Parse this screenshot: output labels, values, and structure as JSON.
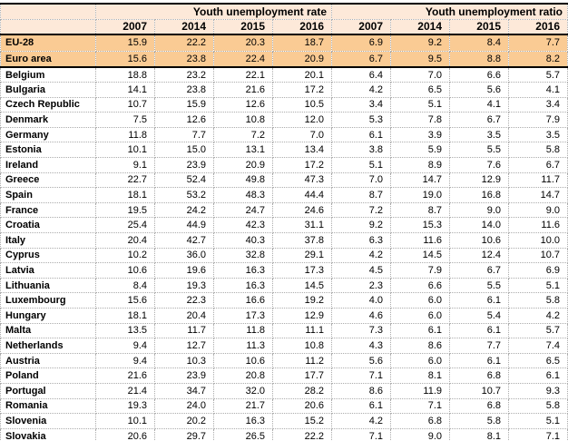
{
  "colors": {
    "header_fill": "#FDE9D9",
    "highlight_fill": "#FACB94",
    "grid_dotted": "#ACACAC",
    "rule_black": "#000000"
  },
  "chart_data": {
    "type": "table",
    "group_headers": [
      "Youth unemployment rate",
      "Youth unemployment ratio"
    ],
    "year_columns": [
      "2007",
      "2014",
      "2015",
      "2016",
      "2007",
      "2014",
      "2015",
      "2016"
    ],
    "legend_note": "rows EU-28 and Euro area are highlighted; bottom row Slovakia is cut off by the viewport",
    "rows": [
      {
        "name": "EU-28",
        "highlight": true,
        "thick_bottom": false,
        "rate": [
          "15.9",
          "22.2",
          "20.3",
          "18.7"
        ],
        "ratio": [
          "6.9",
          "9.2",
          "8.4",
          "7.7"
        ]
      },
      {
        "name": "Euro area",
        "highlight": true,
        "thick_bottom": true,
        "rate": [
          "15.6",
          "23.8",
          "22.4",
          "20.9"
        ],
        "ratio": [
          "6.7",
          "9.5",
          "8.8",
          "8.2"
        ]
      },
      {
        "name": "Belgium",
        "highlight": false,
        "thick_bottom": false,
        "rate": [
          "18.8",
          "23.2",
          "22.1",
          "20.1"
        ],
        "ratio": [
          "6.4",
          "7.0",
          "6.6",
          "5.7"
        ]
      },
      {
        "name": "Bulgaria",
        "highlight": false,
        "thick_bottom": false,
        "rate": [
          "14.1",
          "23.8",
          "21.6",
          "17.2"
        ],
        "ratio": [
          "4.2",
          "6.5",
          "5.6",
          "4.1"
        ]
      },
      {
        "name": "Czech Republic",
        "highlight": false,
        "thick_bottom": false,
        "rate": [
          "10.7",
          "15.9",
          "12.6",
          "10.5"
        ],
        "ratio": [
          "3.4",
          "5.1",
          "4.1",
          "3.4"
        ]
      },
      {
        "name": "Denmark",
        "highlight": false,
        "thick_bottom": false,
        "rate": [
          "7.5",
          "12.6",
          "10.8",
          "12.0"
        ],
        "ratio": [
          "5.3",
          "7.8",
          "6.7",
          "7.9"
        ]
      },
      {
        "name": "Germany",
        "highlight": false,
        "thick_bottom": false,
        "rate": [
          "11.8",
          "7.7",
          "7.2",
          "7.0"
        ],
        "ratio": [
          "6.1",
          "3.9",
          "3.5",
          "3.5"
        ]
      },
      {
        "name": "Estonia",
        "highlight": false,
        "thick_bottom": false,
        "rate": [
          "10.1",
          "15.0",
          "13.1",
          "13.4"
        ],
        "ratio": [
          "3.8",
          "5.9",
          "5.5",
          "5.8"
        ]
      },
      {
        "name": "Ireland",
        "highlight": false,
        "thick_bottom": false,
        "rate": [
          "9.1",
          "23.9",
          "20.9",
          "17.2"
        ],
        "ratio": [
          "5.1",
          "8.9",
          "7.6",
          "6.7"
        ]
      },
      {
        "name": "Greece",
        "highlight": false,
        "thick_bottom": false,
        "rate": [
          "22.7",
          "52.4",
          "49.8",
          "47.3"
        ],
        "ratio": [
          "7.0",
          "14.7",
          "12.9",
          "11.7"
        ]
      },
      {
        "name": "Spain",
        "highlight": false,
        "thick_bottom": false,
        "rate": [
          "18.1",
          "53.2",
          "48.3",
          "44.4"
        ],
        "ratio": [
          "8.7",
          "19.0",
          "16.8",
          "14.7"
        ]
      },
      {
        "name": "France",
        "highlight": false,
        "thick_bottom": false,
        "rate": [
          "19.5",
          "24.2",
          "24.7",
          "24.6"
        ],
        "ratio": [
          "7.2",
          "8.7",
          "9.0",
          "9.0"
        ]
      },
      {
        "name": "Croatia",
        "highlight": false,
        "thick_bottom": false,
        "rate": [
          "25.4",
          "44.9",
          "42.3",
          "31.1"
        ],
        "ratio": [
          "9.2",
          "15.3",
          "14.0",
          "11.6"
        ]
      },
      {
        "name": "Italy",
        "highlight": false,
        "thick_bottom": false,
        "rate": [
          "20.4",
          "42.7",
          "40.3",
          "37.8"
        ],
        "ratio": [
          "6.3",
          "11.6",
          "10.6",
          "10.0"
        ]
      },
      {
        "name": "Cyprus",
        "highlight": false,
        "thick_bottom": false,
        "rate": [
          "10.2",
          "36.0",
          "32.8",
          "29.1"
        ],
        "ratio": [
          "4.2",
          "14.5",
          "12.4",
          "10.7"
        ]
      },
      {
        "name": "Latvia",
        "highlight": false,
        "thick_bottom": false,
        "rate": [
          "10.6",
          "19.6",
          "16.3",
          "17.3"
        ],
        "ratio": [
          "4.5",
          "7.9",
          "6.7",
          "6.9"
        ]
      },
      {
        "name": "Lithuania",
        "highlight": false,
        "thick_bottom": false,
        "rate": [
          "8.4",
          "19.3",
          "16.3",
          "14.5"
        ],
        "ratio": [
          "2.3",
          "6.6",
          "5.5",
          "5.1"
        ]
      },
      {
        "name": "Luxembourg",
        "highlight": false,
        "thick_bottom": false,
        "rate": [
          "15.6",
          "22.3",
          "16.6",
          "19.2"
        ],
        "ratio": [
          "4.0",
          "6.0",
          "6.1",
          "5.8"
        ]
      },
      {
        "name": "Hungary",
        "highlight": false,
        "thick_bottom": false,
        "rate": [
          "18.1",
          "20.4",
          "17.3",
          "12.9"
        ],
        "ratio": [
          "4.6",
          "6.0",
          "5.4",
          "4.2"
        ]
      },
      {
        "name": "Malta",
        "highlight": false,
        "thick_bottom": false,
        "rate": [
          "13.5",
          "11.7",
          "11.8",
          "11.1"
        ],
        "ratio": [
          "7.3",
          "6.1",
          "6.1",
          "5.7"
        ]
      },
      {
        "name": "Netherlands",
        "highlight": false,
        "thick_bottom": false,
        "rate": [
          "9.4",
          "12.7",
          "11.3",
          "10.8"
        ],
        "ratio": [
          "4.3",
          "8.6",
          "7.7",
          "7.4"
        ]
      },
      {
        "name": "Austria",
        "highlight": false,
        "thick_bottom": false,
        "rate": [
          "9.4",
          "10.3",
          "10.6",
          "11.2"
        ],
        "ratio": [
          "5.6",
          "6.0",
          "6.1",
          "6.5"
        ]
      },
      {
        "name": "Poland",
        "highlight": false,
        "thick_bottom": false,
        "rate": [
          "21.6",
          "23.9",
          "20.8",
          "17.7"
        ],
        "ratio": [
          "7.1",
          "8.1",
          "6.8",
          "6.1"
        ]
      },
      {
        "name": "Portugal",
        "highlight": false,
        "thick_bottom": false,
        "rate": [
          "21.4",
          "34.7",
          "32.0",
          "28.2"
        ],
        "ratio": [
          "8.6",
          "11.9",
          "10.7",
          "9.3"
        ]
      },
      {
        "name": "Romania",
        "highlight": false,
        "thick_bottom": false,
        "rate": [
          "19.3",
          "24.0",
          "21.7",
          "20.6"
        ],
        "ratio": [
          "6.1",
          "7.1",
          "6.8",
          "5.8"
        ]
      },
      {
        "name": "Slovenia",
        "highlight": false,
        "thick_bottom": false,
        "rate": [
          "10.1",
          "20.2",
          "16.3",
          "15.2"
        ],
        "ratio": [
          "4.2",
          "6.8",
          "5.8",
          "5.1"
        ]
      },
      {
        "name": "Slovakia",
        "highlight": false,
        "thick_bottom": false,
        "rate": [
          "20.6",
          "29.7",
          "26.5",
          "22.2"
        ],
        "ratio": [
          "7.1",
          "9.0",
          "8.1",
          "7.1"
        ]
      }
    ]
  }
}
